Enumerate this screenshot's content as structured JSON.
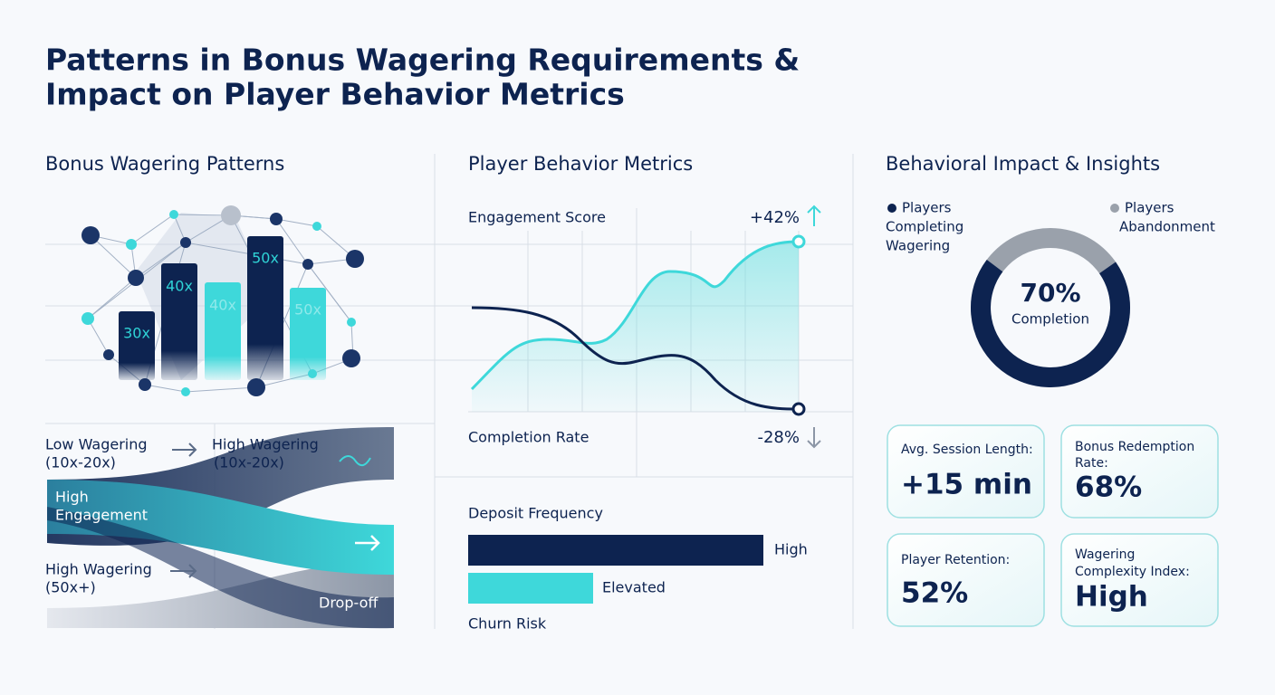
{
  "header": {
    "title_lines": [
      "Patterns in Bonus Wagering Requirements &",
      "Impact on Player Behavior Metrics"
    ]
  },
  "wagering": {
    "heading": "Bonus Wagering Patterns",
    "bar_labels": [
      "30x",
      "40x",
      "40x",
      "50x",
      "50x"
    ],
    "flow": {
      "low_wagering": [
        "Low Wagering",
        "(10x-20x)"
      ],
      "high_wagering_top": [
        "High Wagering",
        "(10x-20x)"
      ],
      "high_engagement": [
        "High",
        "Engagement"
      ],
      "high_wagering_bottom": [
        "High Wagering",
        "(50x+)"
      ],
      "drop_off": "Drop-off"
    }
  },
  "behavior": {
    "heading": "Player Behavior Metrics",
    "engagement_label": "Engagement Score",
    "engagement_change": "+42%",
    "completion_label": "Completion Rate",
    "completion_change": "-28%",
    "deposit_label": "Deposit Frequency",
    "deposit_level": "High",
    "churn_level": "Elevated",
    "churn_label": "Churn Risk"
  },
  "insights": {
    "heading": "Behavioral Impact & Insights",
    "legend_completing": [
      "Players",
      "Completing",
      "Wagering"
    ],
    "legend_abandonment": [
      "Players",
      "Abandonment"
    ],
    "donut": {
      "value": 70,
      "value_label": "70%",
      "label": "Completion"
    },
    "cards": [
      {
        "label_lines": [
          "Avg. Session Length:"
        ],
        "value": "+15 min"
      },
      {
        "label_lines": [
          "Bonus Redemption",
          "Rate:"
        ],
        "value": "68%"
      },
      {
        "label_lines": [
          "Player Retention:"
        ],
        "value": "52%"
      },
      {
        "label_lines": [
          "Wagering",
          "Complexity Index:"
        ],
        "value": "High"
      }
    ]
  }
}
